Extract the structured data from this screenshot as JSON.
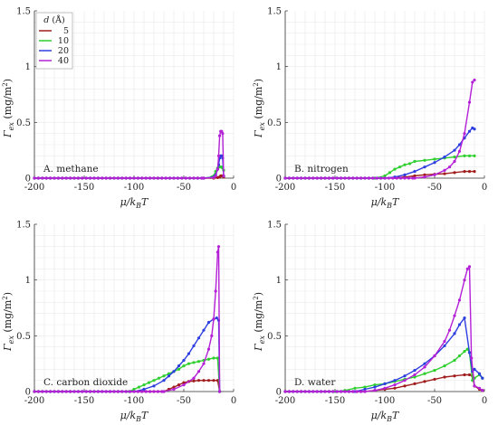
{
  "colors": {
    "d5": "#a11d1d",
    "d10": "#2fcf2f",
    "d20": "#2e3fe0",
    "d40": "#b420d6",
    "grid": "#e9e9e9",
    "axis": "#333333"
  },
  "legend": {
    "title": "d (Å)",
    "labels": [
      "5",
      "10",
      "20",
      "40"
    ]
  },
  "chart_data": [
    {
      "type": "line",
      "title": "A. methane",
      "xlabel": "μ/k_BT",
      "ylabel": "Γ_ex (mg/m²)",
      "xlim": [
        -200,
        0
      ],
      "ylim": [
        0,
        1.5
      ],
      "xticks": [
        "-200",
        "-150",
        "-100",
        "-50",
        "0"
      ],
      "yticks": [
        "0",
        "0.5",
        "1",
        "1.5"
      ],
      "grid": true,
      "series": [
        {
          "name": "5",
          "x": [
            -200,
            -30,
            -20,
            -16,
            -14,
            -13,
            -12,
            -11,
            -10
          ],
          "y": [
            0,
            0,
            0,
            0.005,
            0.01,
            0.02,
            0.02,
            0.02,
            0.01
          ]
        },
        {
          "name": "10",
          "x": [
            -200,
            -30,
            -22,
            -20,
            -18,
            -16,
            -14,
            -13,
            -12,
            -11,
            -10
          ],
          "y": [
            0,
            0,
            0.01,
            0.02,
            0.06,
            0.09,
            0.1,
            0.1,
            0.1,
            0.09,
            0.07
          ]
        },
        {
          "name": "20",
          "x": [
            -200,
            -30,
            -20,
            -18,
            -16,
            -15,
            -14,
            -13,
            -12,
            -11,
            -10
          ],
          "y": [
            0,
            0,
            0.01,
            0.03,
            0.08,
            0.12,
            0.18,
            0.2,
            0.2,
            0.18,
            0.02
          ]
        },
        {
          "name": "40",
          "x": [
            -200,
            -30,
            -20,
            -18,
            -16,
            -15,
            -14,
            -13,
            -12,
            -11,
            -10
          ],
          "y": [
            0,
            0,
            0.005,
            0.02,
            0.08,
            0.2,
            0.38,
            0.42,
            0.42,
            0.4,
            0.02
          ]
        }
      ]
    },
    {
      "type": "line",
      "title": "B. nitrogen",
      "xlabel": "μ/k_BT",
      "ylabel": "Γ_ex (mg/m²)",
      "xlim": [
        -200,
        0
      ],
      "ylim": [
        0,
        1.5
      ],
      "xticks": [
        "-200",
        "-150",
        "-100",
        "-50",
        "0"
      ],
      "yticks": [
        "0",
        "0.5",
        "1",
        "1.5"
      ],
      "grid": true,
      "series": [
        {
          "name": "5",
          "x": [
            -200,
            -100,
            -90,
            -80,
            -70,
            -60,
            -50,
            -40,
            -30,
            -20,
            -15,
            -10
          ],
          "y": [
            0,
            0,
            0.005,
            0.01,
            0.02,
            0.03,
            0.035,
            0.04,
            0.05,
            0.06,
            0.06,
            0.06
          ]
        },
        {
          "name": "10",
          "x": [
            -200,
            -110,
            -100,
            -95,
            -90,
            -85,
            -80,
            -75,
            -70,
            -60,
            -50,
            -40,
            -30,
            -20,
            -15,
            -10
          ],
          "y": [
            0,
            0,
            0.02,
            0.05,
            0.08,
            0.1,
            0.12,
            0.13,
            0.15,
            0.16,
            0.17,
            0.18,
            0.19,
            0.2,
            0.2,
            0.2
          ]
        },
        {
          "name": "20",
          "x": [
            -200,
            -100,
            -90,
            -80,
            -70,
            -60,
            -50,
            -40,
            -30,
            -25,
            -20,
            -15,
            -12,
            -10
          ],
          "y": [
            0,
            0,
            0.01,
            0.03,
            0.06,
            0.1,
            0.14,
            0.19,
            0.25,
            0.3,
            0.36,
            0.42,
            0.45,
            0.44
          ]
        },
        {
          "name": "40",
          "x": [
            -200,
            -70,
            -60,
            -50,
            -40,
            -35,
            -30,
            -25,
            -20,
            -15,
            -12,
            -10
          ],
          "y": [
            0,
            0,
            0.01,
            0.03,
            0.07,
            0.1,
            0.15,
            0.24,
            0.4,
            0.68,
            0.86,
            0.88
          ]
        }
      ]
    },
    {
      "type": "line",
      "title": "C. carbon dioxide",
      "xlabel": "μ/k_BT",
      "ylabel": "Γ_ex (mg/m²)",
      "xlim": [
        -200,
        0
      ],
      "ylim": [
        0,
        1.5
      ],
      "xticks": [
        "-200",
        "-150",
        "-100",
        "-50",
        "0"
      ],
      "yticks": [
        "0",
        "0.5",
        "1",
        "1.5"
      ],
      "grid": true,
      "series": [
        {
          "name": "5",
          "x": [
            -200,
            -70,
            -65,
            -60,
            -55,
            -50,
            -45,
            -40,
            -35,
            -30,
            -25,
            -20,
            -16,
            -14
          ],
          "y": [
            0,
            0,
            0.02,
            0.04,
            0.06,
            0.08,
            0.09,
            0.095,
            0.1,
            0.1,
            0.1,
            0.1,
            0.1,
            0
          ]
        },
        {
          "name": "10",
          "x": [
            -200,
            -105,
            -100,
            -95,
            -90,
            -85,
            -80,
            -75,
            -70,
            -65,
            -60,
            -55,
            -50,
            -45,
            -40,
            -35,
            -30,
            -25,
            -20,
            -16,
            -14
          ],
          "y": [
            0,
            0,
            0.02,
            0.04,
            0.06,
            0.08,
            0.1,
            0.12,
            0.14,
            0.16,
            0.18,
            0.2,
            0.23,
            0.25,
            0.26,
            0.27,
            0.28,
            0.29,
            0.3,
            0.3,
            0
          ]
        },
        {
          "name": "20",
          "x": [
            -200,
            -100,
            -90,
            -80,
            -70,
            -65,
            -60,
            -55,
            -50,
            -45,
            -40,
            -35,
            -30,
            -25,
            -20,
            -17,
            -15,
            -14
          ],
          "y": [
            0,
            0,
            0.02,
            0.05,
            0.1,
            0.14,
            0.18,
            0.23,
            0.28,
            0.34,
            0.41,
            0.48,
            0.55,
            0.62,
            0.65,
            0.66,
            0.64,
            0
          ]
        },
        {
          "name": "40",
          "x": [
            -200,
            -70,
            -60,
            -50,
            -40,
            -35,
            -30,
            -25,
            -22,
            -20,
            -18,
            -16,
            -15,
            -14
          ],
          "y": [
            0,
            0,
            0.02,
            0.06,
            0.12,
            0.18,
            0.25,
            0.38,
            0.5,
            0.65,
            0.9,
            1.25,
            1.3,
            0
          ]
        }
      ]
    },
    {
      "type": "line",
      "title": "D. water",
      "xlabel": "μ/k_BT",
      "ylabel": "Γ_ex (mg/m²)",
      "xlim": [
        -200,
        0
      ],
      "ylim": [
        0,
        1.5
      ],
      "xticks": [
        "-200",
        "-150",
        "-100",
        "-50",
        "0"
      ],
      "yticks": [
        "0",
        "0.5",
        "1",
        "1.5"
      ],
      "grid": true,
      "series": [
        {
          "name": "5",
          "x": [
            -200,
            -120,
            -110,
            -100,
            -90,
            -80,
            -70,
            -60,
            -50,
            -40,
            -30,
            -20,
            -15,
            -12,
            -10,
            -5,
            -2
          ],
          "y": [
            0,
            0,
            0.01,
            0.02,
            0.03,
            0.05,
            0.07,
            0.09,
            0.11,
            0.13,
            0.14,
            0.15,
            0.15,
            0.14,
            0.05,
            0.02,
            0.01
          ]
        },
        {
          "name": "10",
          "x": [
            -200,
            -150,
            -140,
            -130,
            -120,
            -110,
            -100,
            -90,
            -80,
            -70,
            -60,
            -50,
            -40,
            -30,
            -25,
            -20,
            -17,
            -15,
            -12,
            -10,
            -5,
            -2
          ],
          "y": [
            0,
            0,
            0.01,
            0.03,
            0.04,
            0.06,
            0.07,
            0.09,
            0.11,
            0.13,
            0.16,
            0.19,
            0.23,
            0.28,
            0.32,
            0.36,
            0.38,
            0.35,
            0.1,
            0.12,
            0.15,
            0.12
          ]
        },
        {
          "name": "20",
          "x": [
            -200,
            -130,
            -120,
            -110,
            -100,
            -90,
            -80,
            -70,
            -60,
            -50,
            -40,
            -30,
            -25,
            -20,
            -15,
            -12,
            -10,
            -5,
            -2
          ],
          "y": [
            0,
            0,
            0.02,
            0.04,
            0.07,
            0.1,
            0.14,
            0.19,
            0.25,
            0.32,
            0.41,
            0.52,
            0.6,
            0.66,
            0.35,
            0.18,
            0.2,
            0.16,
            0.12
          ]
        },
        {
          "name": "40",
          "x": [
            -200,
            -120,
            -110,
            -100,
            -90,
            -80,
            -70,
            -60,
            -50,
            -40,
            -35,
            -30,
            -25,
            -20,
            -17,
            -15,
            -13,
            -10,
            -5,
            -2
          ],
          "y": [
            0,
            0,
            0.01,
            0.03,
            0.06,
            0.1,
            0.15,
            0.22,
            0.32,
            0.45,
            0.55,
            0.68,
            0.82,
            1.0,
            1.1,
            1.12,
            0.3,
            0.05,
            0.03,
            0.01
          ]
        }
      ]
    }
  ]
}
